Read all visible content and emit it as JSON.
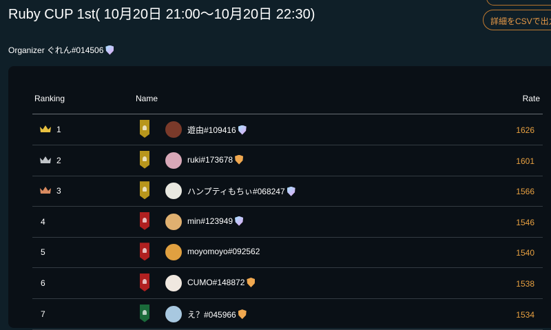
{
  "header": {
    "title": "Ruby CUP 1st( 10月20日 21:00～10月20日 22:30)",
    "csv_button": "詳細をCSVで出力",
    "organizer_label": "Organizer",
    "organizer_name": "ぐれん#014506",
    "organizer_shield": "pastel"
  },
  "table": {
    "columns": [
      "Ranking",
      "Name",
      "Rate"
    ],
    "rows": [
      {
        "rank": "1",
        "crown": "#e8c040",
        "badge": "#b8961c",
        "avatar": "#7a3a2a",
        "name": "遊由#109416",
        "shield": "pastel",
        "rate": "1626"
      },
      {
        "rank": "2",
        "crown": "#c0c4c8",
        "badge": "#b8961c",
        "avatar": "#d8a8b8",
        "name": "ruki#173678",
        "shield": "orange",
        "rate": "1601"
      },
      {
        "rank": "3",
        "crown": "#d88a60",
        "badge": "#b8961c",
        "avatar": "#e8e8e0",
        "name": "ハンプティもちぃ#068247",
        "shield": "pastel",
        "rate": "1566"
      },
      {
        "rank": "4",
        "crown": "",
        "badge": "#b02020",
        "avatar": "#e0b070",
        "name": "min#123949",
        "shield": "pastel",
        "rate": "1546"
      },
      {
        "rank": "5",
        "crown": "",
        "badge": "#b02020",
        "avatar": "#e0a040",
        "name": "moyomoyo#092562",
        "shield": "",
        "rate": "1540"
      },
      {
        "rank": "6",
        "crown": "",
        "badge": "#b02020",
        "avatar": "#f0e8e0",
        "name": "CUMO#148872",
        "shield": "orange",
        "rate": "1538"
      },
      {
        "rank": "7",
        "crown": "",
        "badge": "#1a6a3a",
        "avatar": "#a8c8e0",
        "name": "え？#045966",
        "shield": "orange",
        "rate": "1534"
      }
    ]
  }
}
